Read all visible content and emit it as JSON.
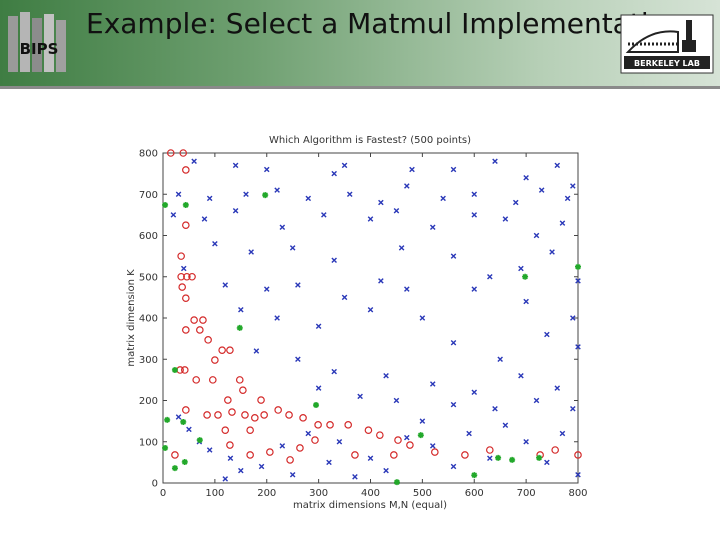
{
  "slide": {
    "title": "Example: Select a Matmul Implementation",
    "logo_left": "BIPS",
    "logo_right": "BERKELEY LAB"
  },
  "chart_data": {
    "type": "scatter",
    "title": "Which Algorithm is Fastest? (500 points)",
    "x_label": "matrix dimensions M,N (equal)",
    "y_label": "matrix dimension K",
    "xlim": [
      0,
      800
    ],
    "ylim": [
      0,
      800
    ],
    "xticks": [
      0,
      100,
      200,
      300,
      400,
      500,
      600,
      700,
      800
    ],
    "yticks": [
      0,
      100,
      200,
      300,
      400,
      500,
      600,
      700,
      800
    ],
    "grid": false,
    "series": [
      {
        "color": "#d42a2a",
        "marker": "o",
        "x": [
          15,
          39,
          44,
          44,
          35,
          35,
          46,
          56,
          37,
          44,
          60,
          77,
          44,
          71,
          87,
          114,
          129,
          100,
          33,
          42,
          64,
          96,
          148,
          154,
          125,
          189,
          44,
          85,
          106,
          133,
          158,
          177,
          195,
          222,
          243,
          270,
          299,
          322,
          357,
          396,
          418,
          453,
          476,
          524,
          129,
          168,
          206,
          245,
          264,
          293,
          370,
          445,
          582,
          630,
          800,
          727,
          756,
          23,
          168,
          120
        ],
        "values": [
          800,
          800,
          759,
          625,
          550,
          500,
          500,
          500,
          475,
          448,
          395,
          395,
          371,
          371,
          347,
          322,
          322,
          298,
          274,
          274,
          250,
          250,
          250,
          225,
          201,
          201,
          177,
          165,
          165,
          172,
          165,
          158,
          165,
          177,
          165,
          158,
          141,
          141,
          141,
          128,
          116,
          104,
          92,
          75,
          92,
          68,
          75,
          56,
          85,
          104,
          68,
          68,
          68,
          80,
          68,
          68,
          80,
          68,
          128,
          128
        ]
      },
      {
        "color": "#2a38b8",
        "marker": "x",
        "x": [
          60,
          140,
          200,
          330,
          350,
          480,
          560,
          640,
          700,
          760,
          790,
          30,
          90,
          160,
          220,
          280,
          360,
          420,
          470,
          540,
          600,
          680,
          730,
          780,
          20,
          80,
          140,
          230,
          310,
          400,
          450,
          520,
          600,
          660,
          720,
          770,
          100,
          170,
          250,
          330,
          460,
          560,
          630,
          690,
          750,
          800,
          40,
          120,
          200,
          260,
          350,
          420,
          470,
          600,
          700,
          790,
          150,
          220,
          300,
          400,
          500,
          560,
          650,
          740,
          800,
          180,
          260,
          330,
          430,
          520,
          600,
          690,
          760,
          300,
          380,
          450,
          560,
          640,
          720,
          790,
          30,
          50,
          70,
          90,
          130,
          150,
          190,
          230,
          280,
          320,
          340,
          400,
          430,
          470,
          500,
          520,
          560,
          590,
          630,
          660,
          700,
          740,
          770,
          800,
          120,
          250,
          370
        ],
        "values": [
          780,
          770,
          760,
          750,
          770,
          760,
          760,
          780,
          740,
          770,
          720,
          700,
          690,
          700,
          710,
          690,
          700,
          680,
          720,
          690,
          700,
          680,
          710,
          690,
          650,
          640,
          660,
          620,
          650,
          640,
          660,
          620,
          650,
          640,
          600,
          630,
          580,
          560,
          570,
          540,
          570,
          550,
          500,
          520,
          560,
          490,
          520,
          480,
          470,
          480,
          450,
          490,
          470,
          470,
          440,
          400,
          420,
          400,
          380,
          420,
          400,
          340,
          300,
          360,
          330,
          320,
          300,
          270,
          260,
          240,
          220,
          260,
          230,
          230,
          210,
          200,
          190,
          180,
          200,
          180,
          160,
          130,
          100,
          80,
          60,
          30,
          40,
          90,
          120,
          50,
          100,
          60,
          30,
          110,
          150,
          90,
          40,
          120,
          60,
          140,
          100,
          50,
          120,
          20,
          10,
          20,
          15
        ]
      },
      {
        "color": "#22a82a",
        "marker": "*",
        "x": [
          4,
          44,
          197,
          148,
          23,
          295,
          39,
          8,
          71,
          4,
          23,
          42,
          451,
          497,
          600,
          646,
          673,
          725,
          698,
          800
        ],
        "values": [
          674,
          674,
          698,
          376,
          274,
          189,
          148,
          153,
          104,
          85,
          36,
          51,
          2,
          116,
          19,
          61,
          56,
          61,
          500,
          524
        ]
      }
    ]
  }
}
